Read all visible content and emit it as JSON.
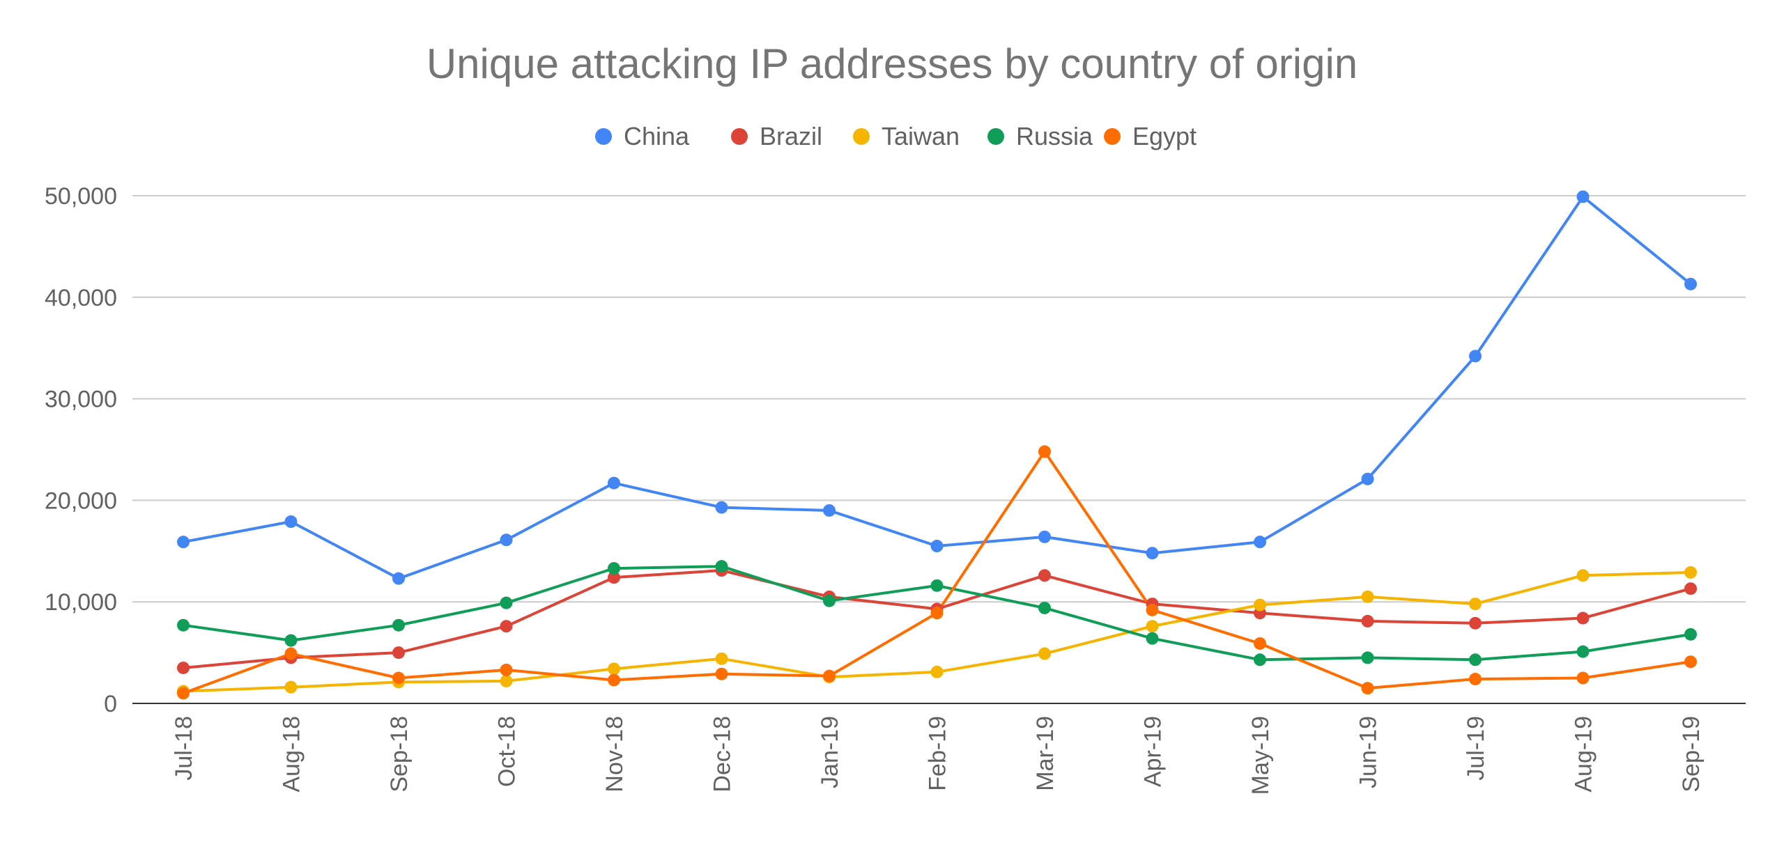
{
  "chart_data": {
    "type": "line",
    "title": "Unique attacking IP addresses by country of origin",
    "xlabel": "",
    "ylabel": "",
    "ylim": [
      0,
      50000
    ],
    "yticks": [
      0,
      10000,
      20000,
      30000,
      40000,
      50000
    ],
    "ytick_labels": [
      "0",
      "10,000",
      "20,000",
      "30,000",
      "40,000",
      "50,000"
    ],
    "grid": true,
    "legend_position": "top",
    "categories": [
      "Jul-18",
      "Aug-18",
      "Sep-18",
      "Oct-18",
      "Nov-18",
      "Dec-18",
      "Jan-19",
      "Feb-19",
      "Mar-19",
      "Apr-19",
      "May-19",
      "Jun-19",
      "Jul-19",
      "Aug-19",
      "Sep-19"
    ],
    "series": [
      {
        "name": "China",
        "color": "#4285F4",
        "values": [
          15900,
          17900,
          12300,
          16100,
          21700,
          19300,
          19000,
          15500,
          16400,
          14800,
          15900,
          22100,
          34200,
          49900,
          41300
        ]
      },
      {
        "name": "Brazil",
        "color": "#DB4437",
        "values": [
          3500,
          4500,
          5000,
          7600,
          12400,
          13100,
          10500,
          9300,
          12600,
          9800,
          8900,
          8100,
          7900,
          8400,
          11300
        ]
      },
      {
        "name": "Taiwan",
        "color": "#F4B400",
        "values": [
          1200,
          1600,
          2100,
          2200,
          3400,
          4400,
          2600,
          3100,
          4900,
          7600,
          9700,
          10500,
          9800,
          12600,
          12900
        ]
      },
      {
        "name": "Russia",
        "color": "#0F9D58",
        "values": [
          7700,
          6200,
          7700,
          9900,
          13300,
          13500,
          10100,
          11600,
          9400,
          6400,
          4300,
          4500,
          4300,
          5100,
          6800
        ]
      },
      {
        "name": "Egypt",
        "color": "#FF6D00",
        "values": [
          1000,
          4900,
          2500,
          3300,
          2300,
          2900,
          2700,
          8900,
          24800,
          9200,
          5900,
          1500,
          2400,
          2500,
          4100
        ]
      }
    ]
  }
}
